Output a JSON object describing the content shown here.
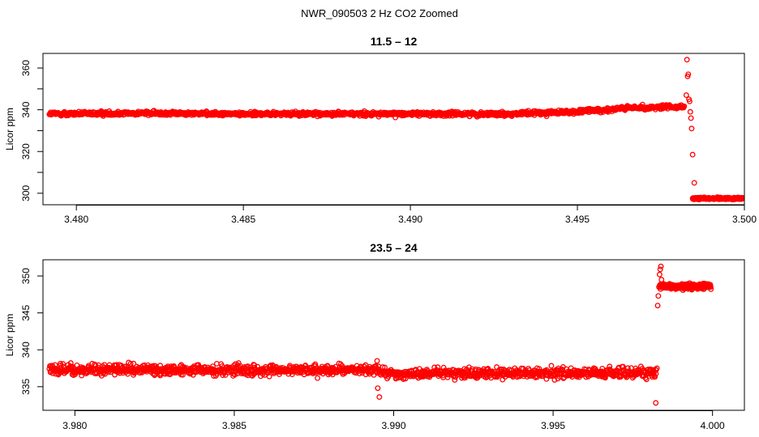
{
  "figure": {
    "title": "NWR_090503  2 Hz CO2 Zoomed",
    "marker_color": "#ff0000"
  },
  "chart_data": [
    {
      "type": "scatter",
      "title": "11.5 – 12",
      "xlabel": "",
      "ylabel": "Licor ppm",
      "xlim": [
        3.479,
        3.5
      ],
      "ylim": [
        294.5,
        367
      ],
      "x_ticks": [
        3.48,
        3.485,
        3.49,
        3.495,
        3.5
      ],
      "x_tick_labels": [
        "3.480",
        "3.485",
        "3.490",
        "3.495",
        "3.500"
      ],
      "y_ticks": [
        300,
        320,
        340,
        360
      ],
      "y_tick_labels": [
        "300",
        "320",
        "340",
        "360"
      ],
      "y_minor_ticks": [
        310,
        330,
        350
      ],
      "grid": false,
      "series": [
        {
          "color": "#ff0000",
          "marker": "open-circle",
          "trend": [
            {
              "x": 3.4792,
              "y": 338
            },
            {
              "x": 3.482,
              "y": 338.4
            },
            {
              "x": 3.485,
              "y": 338
            },
            {
              "x": 3.4875,
              "y": 338
            },
            {
              "x": 3.49,
              "y": 338.1
            },
            {
              "x": 3.493,
              "y": 338
            },
            {
              "x": 3.495,
              "y": 339
            },
            {
              "x": 3.4965,
              "y": 340.8
            },
            {
              "x": 3.4982,
              "y": 341.5
            }
          ],
          "noise": 1.2,
          "outliers": [
            {
              "x": 3.48955,
              "y": 336.3
            },
            {
              "x": 3.49695,
              "y": 342.5
            },
            {
              "x": 3.49828,
              "y": 364
            },
            {
              "x": 3.49832,
              "y": 357
            },
            {
              "x": 3.4983,
              "y": 356
            },
            {
              "x": 3.49826,
              "y": 347
            },
            {
              "x": 3.49834,
              "y": 345
            },
            {
              "x": 3.49836,
              "y": 344
            },
            {
              "x": 3.49838,
              "y": 339
            },
            {
              "x": 3.4984,
              "y": 336
            },
            {
              "x": 3.49842,
              "y": 331
            },
            {
              "x": 3.49845,
              "y": 318.5
            },
            {
              "x": 3.4985,
              "y": 305
            }
          ],
          "tail": {
            "x_start": 3.49845,
            "x_end": 3.49995,
            "y": 297.5,
            "noise": 0.6
          }
        }
      ]
    },
    {
      "type": "scatter",
      "title": "23.5 – 24",
      "xlabel": "",
      "ylabel": "Licor ppm",
      "xlim": [
        3.979,
        4.001
      ],
      "ylim": [
        331.8,
        352.2
      ],
      "x_ticks": [
        3.98,
        3.985,
        3.99,
        3.995,
        4.0
      ],
      "x_tick_labels": [
        "3.980",
        "3.985",
        "3.990",
        "3.995",
        "4.000"
      ],
      "y_ticks": [
        335,
        340,
        345,
        350
      ],
      "y_tick_labels": [
        "335",
        "340",
        "345",
        "350"
      ],
      "y_minor_ticks": [],
      "grid": false,
      "series": [
        {
          "color": "#ff0000",
          "marker": "open-circle",
          "trend": [
            {
              "x": 3.9792,
              "y": 337.3
            },
            {
              "x": 3.985,
              "y": 337.2
            },
            {
              "x": 3.9895,
              "y": 337.3
            },
            {
              "x": 3.9898,
              "y": 336.8
            },
            {
              "x": 3.995,
              "y": 336.8
            },
            {
              "x": 3.99825,
              "y": 336.9
            }
          ],
          "noise": 0.9,
          "outliers": [
            {
              "x": 3.98955,
              "y": 333.6
            },
            {
              "x": 3.9895,
              "y": 334.8
            },
            {
              "x": 3.98948,
              "y": 338.5
            },
            {
              "x": 3.99822,
              "y": 332.8
            },
            {
              "x": 3.99828,
              "y": 346
            },
            {
              "x": 3.9983,
              "y": 347.3
            },
            {
              "x": 3.99832,
              "y": 348.5
            },
            {
              "x": 3.99834,
              "y": 350.2
            },
            {
              "x": 3.99836,
              "y": 350.9
            },
            {
              "x": 3.99838,
              "y": 351.3
            },
            {
              "x": 3.9984,
              "y": 349.5
            }
          ],
          "tail": {
            "x_start": 3.99835,
            "x_end": 3.99995,
            "y": 348.6,
            "noise": 0.5
          }
        }
      ]
    }
  ]
}
